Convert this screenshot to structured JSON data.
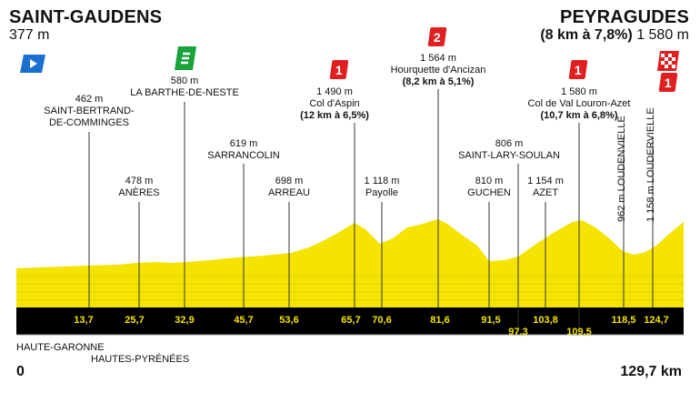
{
  "start": {
    "name": "SAINT-GAUDENS",
    "altitude": "377 m",
    "km": "0"
  },
  "finish": {
    "name": "PEYRAGUDES",
    "climb": "(8 km à 7,8%)",
    "altitude": "1 580 m",
    "km": "129,7 km"
  },
  "regions": [
    "HAUTE-GARONNE",
    "HAUTES-PYRÉNÉES"
  ],
  "points": [
    {
      "alt": "462 m",
      "name1": "SAINT-BERTRAND-",
      "name2": "DE-COMMINGES"
    },
    {
      "alt": "478 m",
      "name1": "ANÈRES"
    },
    {
      "alt": "580 m",
      "name1": "LA BARTHE-DE-NESTE"
    },
    {
      "alt": "619 m",
      "name1": "SARRANCOLIN"
    },
    {
      "alt": "698 m",
      "name1": "ARREAU"
    },
    {
      "alt": "1 490 m",
      "name1": "Col d'Aspin",
      "detail": "(12 km à 6,5%)"
    },
    {
      "alt": "1 118 m",
      "name1": "Payolle"
    },
    {
      "alt": "1 564 m",
      "name1": "Hourquette d'Ancizan",
      "detail": "(8,2 km à 5,1%)"
    },
    {
      "alt": "810 m",
      "name1": "GUCHEN"
    },
    {
      "alt": "806 m",
      "name1": "SAINT-LARY-SOULAN"
    },
    {
      "alt": "1 154 m",
      "name1": "AZET"
    },
    {
      "alt": "1 580 m",
      "name1": "Col de Val Louron-Azet",
      "detail": "(10,7 km à 6,8%)"
    },
    {
      "alt": "962 m",
      "name1": "LOUDENVIELLE"
    },
    {
      "alt": "1 158 m",
      "name1": "LOUDERVIELLE"
    }
  ],
  "km_marks": [
    "13,7",
    "25,7",
    "32,9",
    "45,7",
    "53,6",
    "65,7",
    "70,6",
    "81,6",
    "91,5",
    "97,3",
    "103,8",
    "109,5",
    "118,5",
    "124,7"
  ],
  "categories": {
    "aspin": "1",
    "hourquette": "2",
    "val_louron": "1",
    "finish": "1"
  },
  "icons": {
    "start": "start-flag-icon",
    "sprint": "green-sprint-icon",
    "finish": "checkered-finish-icon"
  },
  "colors": {
    "profile": "#f4e400",
    "profile_shade": "#e8d800",
    "base_band": "#000000",
    "km_text": "#f4e400",
    "climb_badge": "#e02020",
    "sprint": "#1aa33a",
    "start_flag": "#1a6fd1"
  }
}
